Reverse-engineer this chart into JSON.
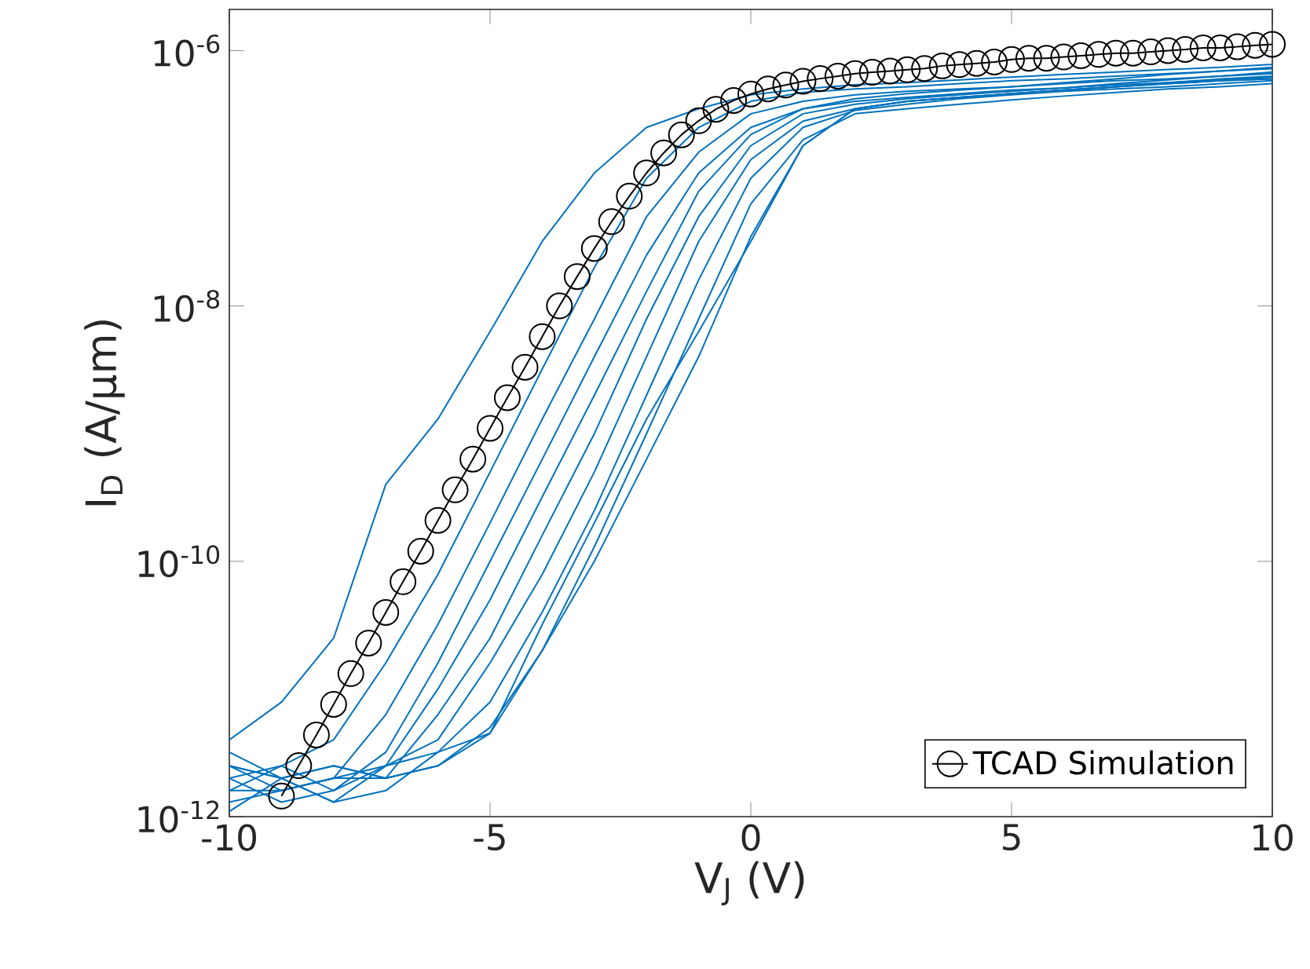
{
  "chart_data": {
    "type": "line",
    "xlabel": "V$_{J}$ (V)",
    "ylabel": "I$_{D}$ (A/µm)",
    "log": "y",
    "xlim": [
      -10,
      10
    ],
    "xticks": [
      -10,
      -5,
      0,
      5,
      10
    ],
    "ylim": [
      1e-12,
      2.1e-06
    ],
    "yticks": [
      {
        "value": 1e-12,
        "label": "10$^{-12}$"
      },
      {
        "value": 1e-10,
        "label": "10$^{-10}$"
      },
      {
        "value": 1e-08,
        "label": "10$^{-8}$"
      },
      {
        "value": 1e-06,
        "label": "10$^{-6}$"
      }
    ],
    "legend": "bottom right",
    "line_style": "solid",
    "x": [
      -10,
      -9,
      -8,
      -7,
      -6,
      -5,
      -4,
      -3,
      -2,
      -1,
      0,
      1,
      2,
      3,
      4,
      5,
      6,
      7,
      8,
      9,
      10
    ],
    "series": [
      {
        "color": "#0072bd",
        "marker": "none",
        "values": [
          4e-12,
          7.9e-12,
          2.5e-11,
          4e-10,
          1.3e-09,
          6.3e-09,
          3.2e-08,
          1.1e-07,
          2.5e-07,
          3.5e-07,
          4.5e-07,
          5e-07,
          5.4e-07,
          5.6e-07,
          5.9e-07,
          6.2e-07,
          6.5e-07,
          6.8e-07,
          7.1e-07,
          7.4e-07,
          7.8e-07
        ]
      },
      {
        "color": "#0072bd",
        "marker": "none",
        "values": [
          2e-12,
          2.5e-12,
          4e-12,
          1.6e-11,
          7.9e-11,
          5e-10,
          3.2e-09,
          2e-08,
          1e-07,
          2.5e-07,
          4e-07,
          4.7e-07,
          5e-07,
          5.2e-07,
          5.5e-07,
          5.8e-07,
          6e-07,
          6.3e-07,
          6.6e-07,
          6.9e-07,
          7.2e-07
        ]
      },
      {
        "color": "#0072bd",
        "marker": "none",
        "values": [
          2.5e-12,
          1.6e-12,
          2e-12,
          6.3e-12,
          3.2e-11,
          2e-10,
          1.3e-09,
          7.9e-09,
          5e-08,
          1.6e-07,
          3.2e-07,
          4e-07,
          4.5e-07,
          4.8e-07,
          5e-07,
          5.2e-07,
          5.5e-07,
          5.8e-07,
          6e-07,
          6.3e-07,
          6.6e-07
        ]
      },
      {
        "color": "#0072bd",
        "marker": "none",
        "values": [
          1.6e-12,
          2.5e-12,
          1.6e-12,
          3.2e-12,
          1.6e-11,
          1e-10,
          6.3e-10,
          4e-09,
          2.5e-08,
          1.1e-07,
          2.5e-07,
          3.5e-07,
          4e-07,
          4.3e-07,
          4.6e-07,
          4.9e-07,
          5.1e-07,
          5.4e-07,
          5.6e-07,
          5.9e-07,
          6.2e-07
        ]
      },
      {
        "color": "#0072bd",
        "marker": "none",
        "values": [
          3.2e-12,
          2e-12,
          1.3e-12,
          2.5e-12,
          1e-11,
          5e-11,
          3.2e-10,
          2e-09,
          1.3e-08,
          7.9e-08,
          2.2e-07,
          3.5e-07,
          4.2e-07,
          4.6e-07,
          4.9e-07,
          5.2e-07,
          5.6e-07,
          6e-07,
          6.5e-07,
          6.9e-07,
          7.4e-07
        ]
      },
      {
        "color": "#0072bd",
        "marker": "none",
        "values": [
          1.3e-12,
          1.6e-12,
          2e-12,
          2e-12,
          6.3e-12,
          2.5e-11,
          1.6e-10,
          1e-09,
          7.9e-09,
          5e-08,
          1.8e-07,
          3.2e-07,
          3.8e-07,
          4.2e-07,
          4.5e-07,
          4.8e-07,
          5.1e-07,
          5.5e-07,
          5.9e-07,
          6.3e-07,
          6.8e-07
        ]
      },
      {
        "color": "#0072bd",
        "marker": "none",
        "values": [
          2e-12,
          1.3e-12,
          1.6e-12,
          2.5e-12,
          4e-12,
          1.6e-11,
          7.9e-11,
          5e-10,
          4e-09,
          3.2e-08,
          1.4e-07,
          2.8e-07,
          3.5e-07,
          4e-07,
          4.3e-07,
          4.6e-07,
          4.9e-07,
          5.2e-07,
          5.5e-07,
          5.8e-07,
          6e-07
        ]
      },
      {
        "color": "#0072bd",
        "marker": "none",
        "values": [
          1.1e-12,
          2e-12,
          1.3e-12,
          1.6e-12,
          3.2e-12,
          7.9e-12,
          4e-11,
          2.5e-10,
          2e-09,
          1.6e-08,
          1e-07,
          2.5e-07,
          3.4e-07,
          3.8e-07,
          4.2e-07,
          4.5e-07,
          4.8e-07,
          5e-07,
          5.2e-07,
          5.5e-07,
          5.8e-07
        ]
      },
      {
        "color": "#0072bd",
        "marker": "none",
        "values": [
          2.5e-12,
          2e-12,
          2.5e-12,
          2e-12,
          2.5e-12,
          5e-12,
          2e-11,
          1.3e-10,
          1e-09,
          7.9e-09,
          6.3e-08,
          2e-07,
          3.2e-07,
          3.5e-07,
          3.8e-07,
          4.1e-07,
          4.4e-07,
          4.7e-07,
          5e-07,
          5.2e-07,
          5.5e-07
        ]
      },
      {
        "color": "#0072bd",
        "marker": "none",
        "values": [
          1.6e-12,
          1.6e-12,
          2e-12,
          2.5e-12,
          3.2e-12,
          4.5e-12,
          3.2e-11,
          2e-10,
          1.3e-09,
          6.3e-09,
          3.2e-08,
          1.8e-07,
          3.5e-07,
          4e-07,
          4.3e-07,
          4.6e-07,
          4.9e-07,
          5.2e-07,
          5.6e-07,
          6e-07,
          6.3e-07
        ]
      },
      {
        "color": "#0072bd",
        "marker": "none",
        "values": [
          2.5e-12,
          2e-12,
          2.5e-12,
          2e-12,
          2.5e-12,
          4.5e-12,
          2e-11,
          1e-10,
          6.3e-10,
          4e-09,
          3.5e-08,
          1.8e-07,
          3.5e-07,
          4e-07,
          4.3e-07,
          4.6e-07,
          4.9e-07,
          5.2e-07,
          5.5e-07,
          5.8e-07,
          6e-07
        ]
      },
      {
        "name": "TCAD Simulation",
        "color": "#000000",
        "marker": "circle",
        "x": [
          -9,
          -8.67,
          -8.33,
          -8,
          -7.67,
          -7.33,
          -7,
          -6.67,
          -6.33,
          -6,
          -5.67,
          -5.33,
          -5,
          -4.67,
          -4.33,
          -4,
          -3.67,
          -3.33,
          -3,
          -2.67,
          -2.33,
          -2,
          -1.67,
          -1.33,
          -1,
          -0.67,
          -0.33,
          0,
          0.33,
          0.67,
          1,
          1.33,
          1.67,
          2,
          2.33,
          2.67,
          3,
          3.33,
          3.67,
          4,
          4.33,
          4.67,
          5,
          5.33,
          5.67,
          6,
          6.33,
          6.67,
          7,
          7.33,
          7.67,
          8,
          8.33,
          8.67,
          9,
          9.33,
          9.67,
          10
        ],
        "values": [
          1.45e-12,
          2.51e-12,
          4.37e-12,
          7.59e-12,
          1.32e-11,
          2.29e-11,
          3.98e-11,
          6.92e-11,
          1.2e-10,
          2.09e-10,
          3.63e-10,
          6.31e-10,
          1.1e-09,
          1.91e-09,
          3.31e-09,
          5.75e-09,
          1e-08,
          1.7e-08,
          2.82e-08,
          4.57e-08,
          7.24e-08,
          1.1e-07,
          1.58e-07,
          2.19e-07,
          2.82e-07,
          3.47e-07,
          4.07e-07,
          4.57e-07,
          5.01e-07,
          5.37e-07,
          5.75e-07,
          6.03e-07,
          6.31e-07,
          6.61e-07,
          6.76e-07,
          6.92e-07,
          7.08e-07,
          7.24e-07,
          7.59e-07,
          7.76e-07,
          7.94e-07,
          8.13e-07,
          8.51e-07,
          8.71e-07,
          8.71e-07,
          8.91e-07,
          9.12e-07,
          9.33e-07,
          9.55e-07,
          9.55e-07,
          9.77e-07,
          1e-06,
          1.02e-06,
          1.05e-06,
          1.05e-06,
          1.07e-06,
          1.1e-06,
          1.12e-06
        ]
      }
    ]
  }
}
